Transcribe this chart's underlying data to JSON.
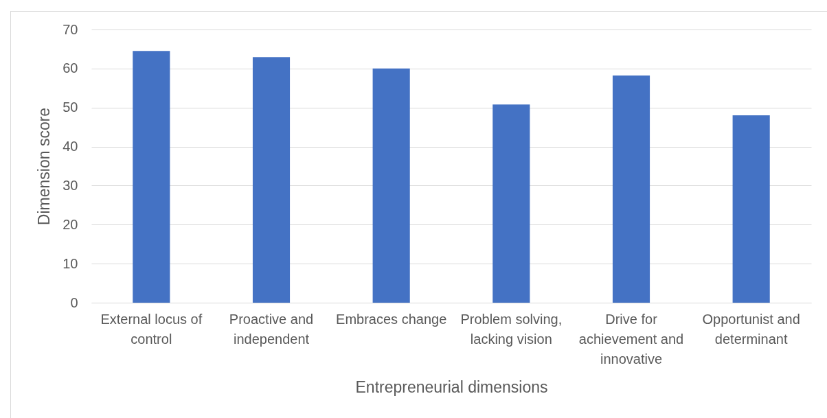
{
  "chart_data": {
    "type": "bar",
    "xlabel": "Entrepreneurial dimensions",
    "ylabel": "Dimension score",
    "categories": [
      "External locus of control",
      "Proactive and independent",
      "Embraces change",
      "Problem solving, lacking vision",
      "Drive for achievement and innovative",
      "Opportunist and determinant"
    ],
    "values": [
      64.5,
      62.9,
      60,
      50.8,
      58.2,
      48
    ],
    "color": "#4472c4",
    "ylim": [
      0,
      70
    ],
    "yticks": [
      0,
      10,
      20,
      30,
      40,
      50,
      60,
      70
    ],
    "grid": "y"
  }
}
